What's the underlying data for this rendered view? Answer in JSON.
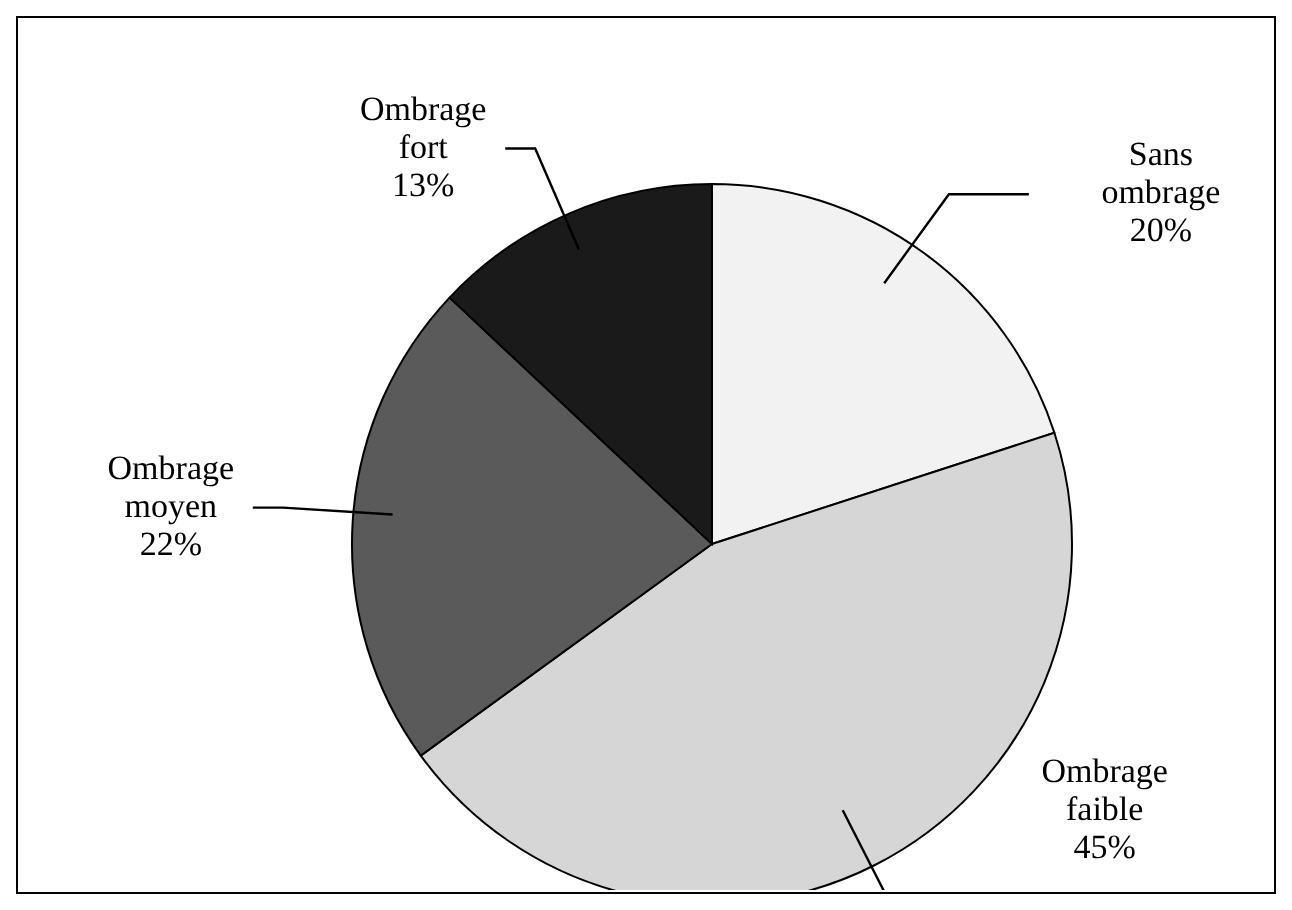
{
  "chart_data": {
    "type": "pie",
    "categories": [
      "Sans ombrage",
      "Ombrage faible",
      "Ombrage moyen",
      "Ombrage fort"
    ],
    "values": [
      20,
      45,
      22,
      13
    ],
    "value_labels": [
      "20%",
      "45%",
      "22%",
      "13%"
    ],
    "colors": [
      "#f2f2f2",
      "#d6d6d6",
      "#5a5a5a",
      "#1a1a1a"
    ],
    "legend": false
  }
}
